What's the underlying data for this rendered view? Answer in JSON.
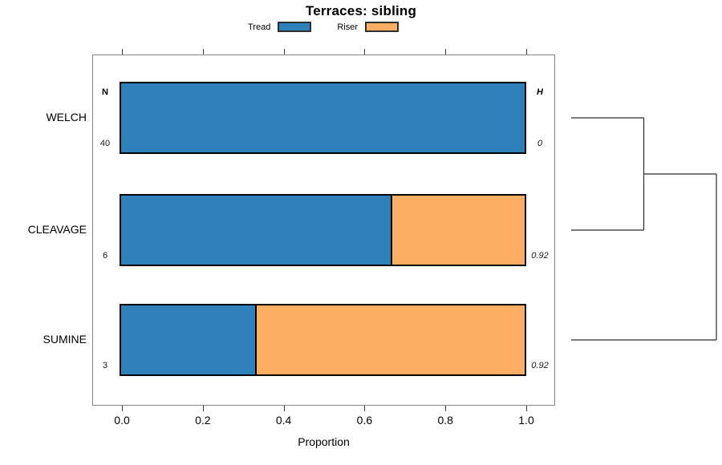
{
  "title": "Terraces: sibling",
  "legend": {
    "items": [
      {
        "label": "Tread",
        "color": "#2e81b8"
      },
      {
        "label": "Riser",
        "color": "#fcae62"
      }
    ]
  },
  "axis": {
    "xlabel": "Proportion",
    "tick_labels": [
      "0.0",
      "0.2",
      "0.4",
      "0.6",
      "0.8",
      "1.0"
    ],
    "tick_values": [
      0,
      0.2,
      0.4,
      0.6,
      0.8,
      1.0
    ]
  },
  "columns": {
    "n_header": "N",
    "h_header": "H"
  },
  "chart_data": {
    "type": "bar",
    "orientation": "horizontal",
    "stacked": true,
    "title": "Terraces: sibling",
    "xlabel": "Proportion",
    "xlim": [
      0,
      1
    ],
    "grid": false,
    "legend_position": "top",
    "categories": [
      "WELCH",
      "CLEAVAGE",
      "SUMINE"
    ],
    "series": [
      {
        "name": "Tread",
        "color": "#2e81b8",
        "values": [
          1.0,
          0.667,
          0.333
        ]
      },
      {
        "name": "Riser",
        "color": "#fcae62",
        "values": [
          0.0,
          0.333,
          0.667
        ]
      }
    ],
    "row_annotations": {
      "N": [
        "40",
        "6",
        "3"
      ],
      "H": [
        "0",
        "0.92",
        "0.92"
      ]
    },
    "dendrogram": {
      "position": "right",
      "leaves": [
        "WELCH",
        "CLEAVAGE",
        "SUMINE"
      ],
      "merges": [
        {
          "children": [
            "WELCH",
            "CLEAVAGE"
          ],
          "height": 1
        },
        {
          "children": [
            "node-0",
            "SUMINE"
          ],
          "height": 2
        }
      ]
    }
  }
}
